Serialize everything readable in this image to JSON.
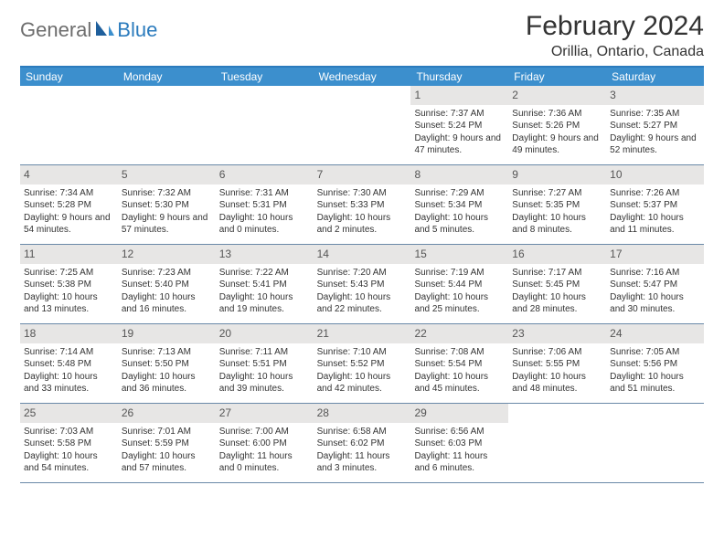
{
  "logo": {
    "text1": "General",
    "text2": "Blue"
  },
  "title": "February 2024",
  "location": "Orillia, Ontario, Canada",
  "colors": {
    "header_bar": "#3c8fcd",
    "top_border": "#2b7bbd",
    "day_num_bg": "#e7e6e5",
    "row_divider": "#6a89a8",
    "text": "#333333",
    "logo_gray": "#6d6d6d",
    "logo_blue": "#2b7bbd"
  },
  "daysOfWeek": [
    "Sunday",
    "Monday",
    "Tuesday",
    "Wednesday",
    "Thursday",
    "Friday",
    "Saturday"
  ],
  "weeks": [
    [
      null,
      null,
      null,
      null,
      {
        "n": "1",
        "sunrise": "7:37 AM",
        "sunset": "5:24 PM",
        "daylight": "9 hours and 47 minutes."
      },
      {
        "n": "2",
        "sunrise": "7:36 AM",
        "sunset": "5:26 PM",
        "daylight": "9 hours and 49 minutes."
      },
      {
        "n": "3",
        "sunrise": "7:35 AM",
        "sunset": "5:27 PM",
        "daylight": "9 hours and 52 minutes."
      }
    ],
    [
      {
        "n": "4",
        "sunrise": "7:34 AM",
        "sunset": "5:28 PM",
        "daylight": "9 hours and 54 minutes."
      },
      {
        "n": "5",
        "sunrise": "7:32 AM",
        "sunset": "5:30 PM",
        "daylight": "9 hours and 57 minutes."
      },
      {
        "n": "6",
        "sunrise": "7:31 AM",
        "sunset": "5:31 PM",
        "daylight": "10 hours and 0 minutes."
      },
      {
        "n": "7",
        "sunrise": "7:30 AM",
        "sunset": "5:33 PM",
        "daylight": "10 hours and 2 minutes."
      },
      {
        "n": "8",
        "sunrise": "7:29 AM",
        "sunset": "5:34 PM",
        "daylight": "10 hours and 5 minutes."
      },
      {
        "n": "9",
        "sunrise": "7:27 AM",
        "sunset": "5:35 PM",
        "daylight": "10 hours and 8 minutes."
      },
      {
        "n": "10",
        "sunrise": "7:26 AM",
        "sunset": "5:37 PM",
        "daylight": "10 hours and 11 minutes."
      }
    ],
    [
      {
        "n": "11",
        "sunrise": "7:25 AM",
        "sunset": "5:38 PM",
        "daylight": "10 hours and 13 minutes."
      },
      {
        "n": "12",
        "sunrise": "7:23 AM",
        "sunset": "5:40 PM",
        "daylight": "10 hours and 16 minutes."
      },
      {
        "n": "13",
        "sunrise": "7:22 AM",
        "sunset": "5:41 PM",
        "daylight": "10 hours and 19 minutes."
      },
      {
        "n": "14",
        "sunrise": "7:20 AM",
        "sunset": "5:43 PM",
        "daylight": "10 hours and 22 minutes."
      },
      {
        "n": "15",
        "sunrise": "7:19 AM",
        "sunset": "5:44 PM",
        "daylight": "10 hours and 25 minutes."
      },
      {
        "n": "16",
        "sunrise": "7:17 AM",
        "sunset": "5:45 PM",
        "daylight": "10 hours and 28 minutes."
      },
      {
        "n": "17",
        "sunrise": "7:16 AM",
        "sunset": "5:47 PM",
        "daylight": "10 hours and 30 minutes."
      }
    ],
    [
      {
        "n": "18",
        "sunrise": "7:14 AM",
        "sunset": "5:48 PM",
        "daylight": "10 hours and 33 minutes."
      },
      {
        "n": "19",
        "sunrise": "7:13 AM",
        "sunset": "5:50 PM",
        "daylight": "10 hours and 36 minutes."
      },
      {
        "n": "20",
        "sunrise": "7:11 AM",
        "sunset": "5:51 PM",
        "daylight": "10 hours and 39 minutes."
      },
      {
        "n": "21",
        "sunrise": "7:10 AM",
        "sunset": "5:52 PM",
        "daylight": "10 hours and 42 minutes."
      },
      {
        "n": "22",
        "sunrise": "7:08 AM",
        "sunset": "5:54 PM",
        "daylight": "10 hours and 45 minutes."
      },
      {
        "n": "23",
        "sunrise": "7:06 AM",
        "sunset": "5:55 PM",
        "daylight": "10 hours and 48 minutes."
      },
      {
        "n": "24",
        "sunrise": "7:05 AM",
        "sunset": "5:56 PM",
        "daylight": "10 hours and 51 minutes."
      }
    ],
    [
      {
        "n": "25",
        "sunrise": "7:03 AM",
        "sunset": "5:58 PM",
        "daylight": "10 hours and 54 minutes."
      },
      {
        "n": "26",
        "sunrise": "7:01 AM",
        "sunset": "5:59 PM",
        "daylight": "10 hours and 57 minutes."
      },
      {
        "n": "27",
        "sunrise": "7:00 AM",
        "sunset": "6:00 PM",
        "daylight": "11 hours and 0 minutes."
      },
      {
        "n": "28",
        "sunrise": "6:58 AM",
        "sunset": "6:02 PM",
        "daylight": "11 hours and 3 minutes."
      },
      {
        "n": "29",
        "sunrise": "6:56 AM",
        "sunset": "6:03 PM",
        "daylight": "11 hours and 6 minutes."
      },
      null,
      null
    ]
  ],
  "labels": {
    "sunrise_prefix": "Sunrise: ",
    "sunset_prefix": "Sunset: ",
    "daylight_prefix": "Daylight: "
  }
}
